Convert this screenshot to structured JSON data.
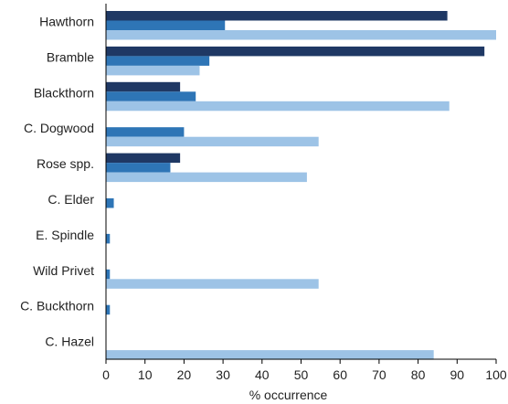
{
  "chart_data": {
    "type": "bar",
    "orientation": "horizontal",
    "title": "",
    "xlabel": "% occurrence",
    "ylabel": "",
    "xlim": [
      0,
      100
    ],
    "xticks": [
      "0",
      "10",
      "20",
      "30",
      "40",
      "50",
      "60",
      "70",
      "80",
      "90",
      "100"
    ],
    "grid": false,
    "legend": "none",
    "categories": [
      "Hawthorn",
      "Bramble",
      "Blackthorn",
      "C. Dogwood",
      "Rose spp.",
      "C. Elder",
      "E. Spindle",
      "Wild Privet",
      "C. Buckthorn",
      "C. Hazel"
    ],
    "series": [
      {
        "color": "#1f3864",
        "values": [
          87.5,
          97,
          19,
          0,
          19,
          0,
          0,
          0,
          0,
          0
        ]
      },
      {
        "color": "#2e75b6",
        "values": [
          30.5,
          26.5,
          23,
          20,
          16.5,
          2,
          1,
          1,
          1,
          0
        ]
      },
      {
        "color": "#9dc3e6",
        "values": [
          100,
          24,
          88,
          54.5,
          51.5,
          0,
          0,
          54.5,
          0,
          84
        ]
      }
    ]
  }
}
